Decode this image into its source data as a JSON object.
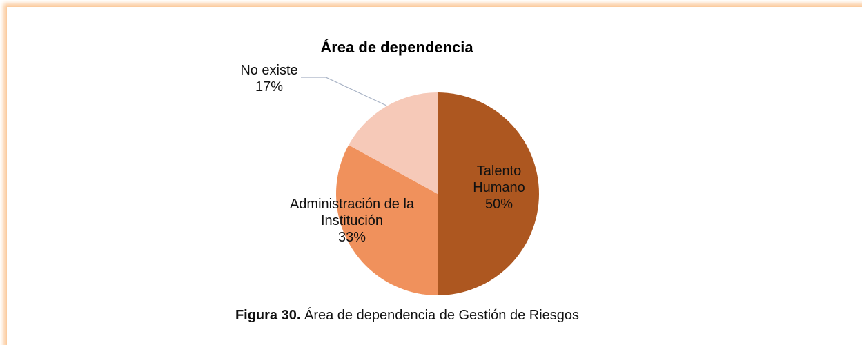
{
  "chart_data": {
    "type": "pie",
    "title": "Área de dependencia",
    "categories": [
      "Talento Humano",
      "Administración de la Institución",
      "No existe"
    ],
    "values": [
      50,
      33,
      17
    ],
    "value_labels": [
      "50%",
      "33%",
      "17%"
    ],
    "colors": [
      "#ad5720",
      "#f0915c",
      "#f6c9b8"
    ]
  },
  "caption": {
    "label": "Figura 30.",
    "text": "Área de dependencia de Gestión de Riesgos"
  }
}
